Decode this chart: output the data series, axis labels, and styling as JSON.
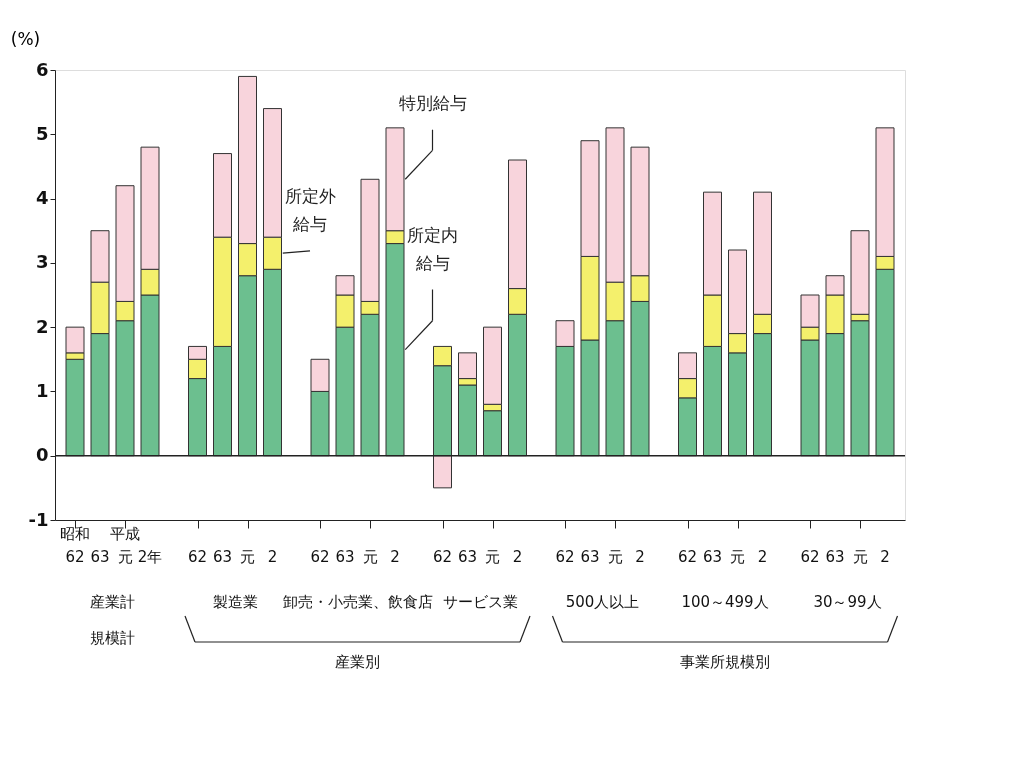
{
  "chart_data": {
    "type": "bar",
    "stacked": true,
    "ylabel": "(%)",
    "categories": [
      "62",
      "63",
      "元",
      "2年",
      "62",
      "63",
      "元",
      "2",
      "62",
      "63",
      "元",
      "2",
      "62",
      "63",
      "元",
      "2",
      "62",
      "63",
      "元",
      "2",
      "62",
      "63",
      "元",
      "2",
      "62",
      "63",
      "元",
      "2"
    ],
    "series": [
      {
        "name": "所定内給与",
        "color": "#6cbf8f",
        "values": [
          1.5,
          1.9,
          2.1,
          2.5,
          1.2,
          1.7,
          2.8,
          2.9,
          1.0,
          2.0,
          2.2,
          3.3,
          1.4,
          1.1,
          0.7,
          2.2,
          1.7,
          1.8,
          2.1,
          2.4,
          0.9,
          1.7,
          1.6,
          1.9,
          1.8,
          1.9,
          2.1,
          2.9
        ]
      },
      {
        "name": "所定外給与",
        "color": "#f4f06c",
        "values": [
          0.1,
          0.8,
          0.3,
          0.4,
          0.3,
          1.7,
          0.5,
          0.5,
          null,
          0.5,
          0.2,
          0.2,
          0.3,
          0.1,
          0.1,
          0.4,
          null,
          1.3,
          0.6,
          0.4,
          0.3,
          0.8,
          0.3,
          0.3,
          0.2,
          0.6,
          0.1,
          0.2
        ]
      },
      {
        "name": "特別給与",
        "color": "#f8d4dc",
        "values": [
          0.4,
          0.8,
          1.8,
          1.9,
          0.2,
          1.3,
          2.6,
          2.0,
          0.5,
          0.3,
          1.9,
          1.6,
          -0.5,
          0.4,
          1.2,
          2.0,
          0.4,
          1.8,
          2.4,
          2.0,
          0.4,
          1.6,
          1.3,
          1.9,
          0.5,
          0.3,
          1.3,
          2.0
        ]
      }
    ],
    "ylim": [
      -1,
      6
    ],
    "yticks": [
      -1,
      0,
      1,
      2,
      3,
      4,
      5,
      6
    ],
    "grid": false,
    "legend": false,
    "ref_lines": [
      {
        "axis": "y",
        "value": 0
      }
    ],
    "annotations": [
      "昭和",
      "平成",
      "産業計",
      "規模計",
      "製造業",
      "卸売・小売業、飲食店",
      "サービス業",
      "500人以上",
      "100～499人",
      "30～99人",
      "産業別",
      "事業所規模別"
    ]
  }
}
